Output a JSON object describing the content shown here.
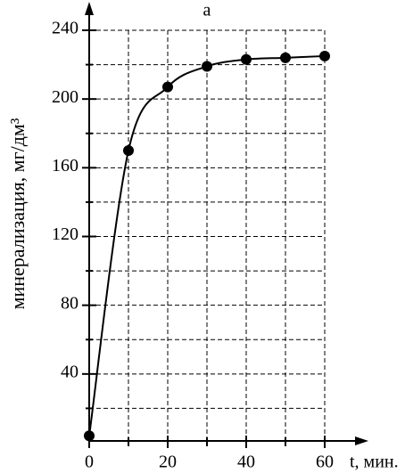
{
  "chart_data": {
    "type": "line",
    "title": "а",
    "x_label": "t, мин.",
    "y_label": "минерализация, мг/дм³",
    "x": [
      0,
      10,
      20,
      30,
      40,
      50,
      60
    ],
    "series": [
      {
        "name": "минерализация",
        "color": "#000000",
        "values": [
          4,
          170,
          207,
          219,
          223,
          224,
          225
        ]
      }
    ],
    "xlim": [
      0,
      60
    ],
    "xticks": [
      0,
      20,
      40,
      60
    ],
    "ylim": [
      0,
      240
    ],
    "yticks": [
      40,
      80,
      120,
      160,
      200,
      240
    ],
    "grid": true
  }
}
